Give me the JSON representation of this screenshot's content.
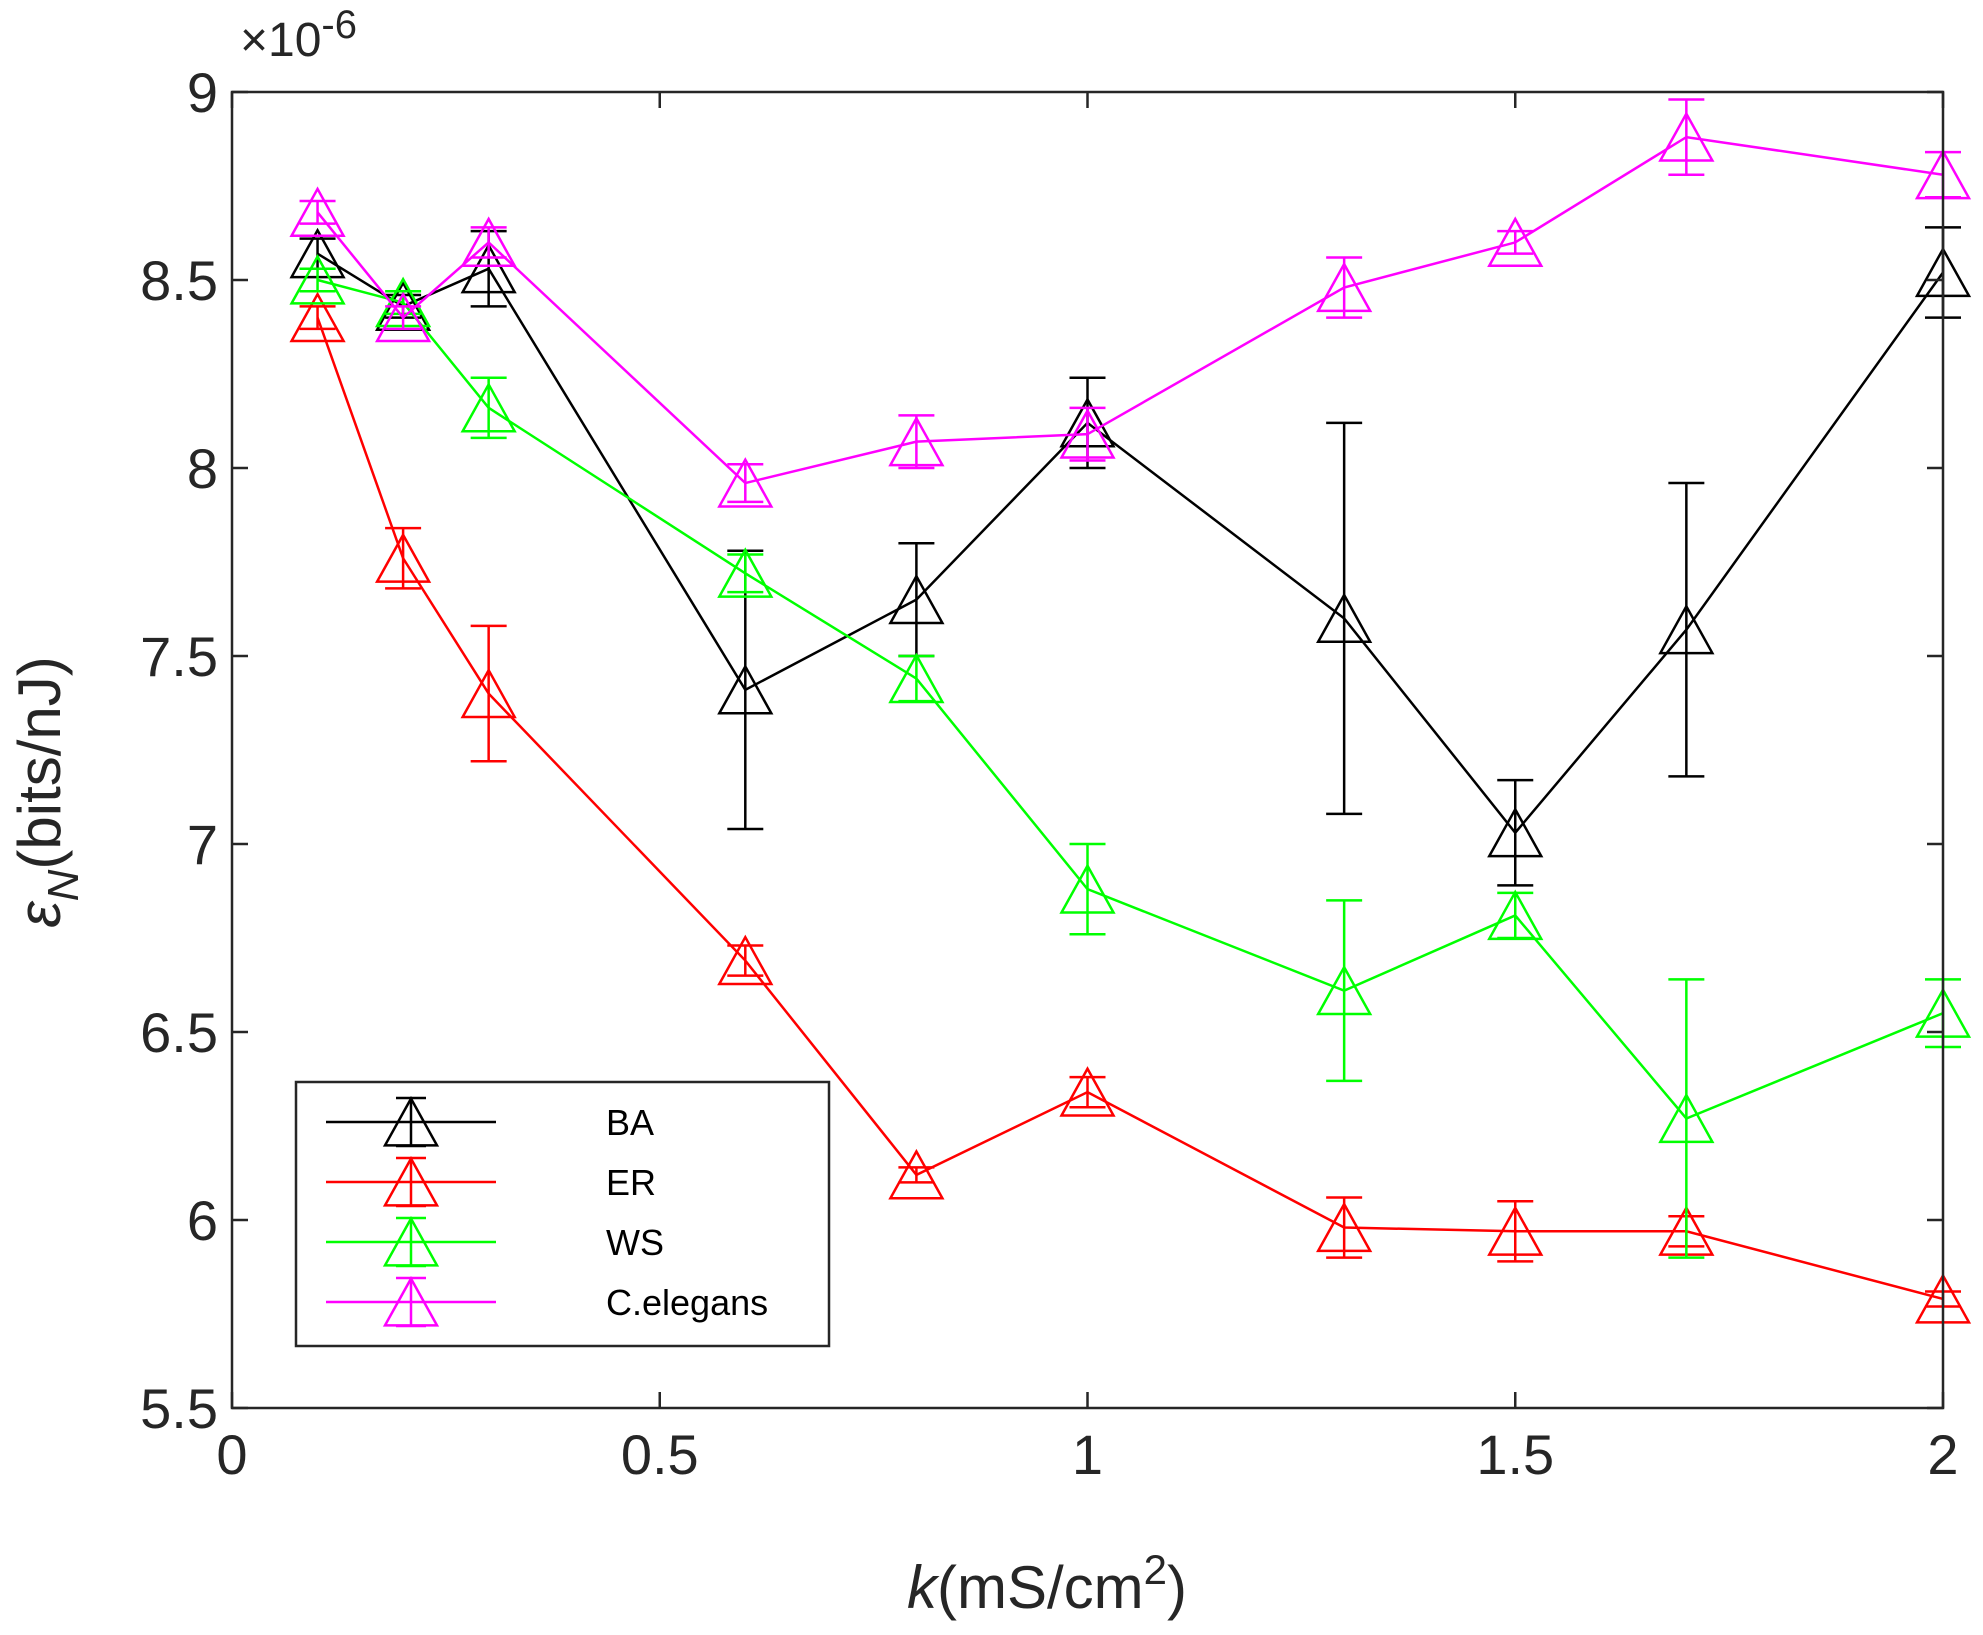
{
  "chart_data": {
    "type": "line",
    "title": "",
    "exponent_multiplier": "×10",
    "exponent_power": "-6",
    "xlabel": {
      "var": "k",
      "unit_pre": "(mS/cm",
      "unit_sup": "2",
      "unit_post": ")"
    },
    "ylabel": {
      "var": "ε",
      "sub": "N",
      "unit": "(bits/nJ)"
    },
    "xlim": [
      0,
      2
    ],
    "ylim": [
      5.5,
      9
    ],
    "xticks": [
      {
        "value": 0,
        "label": "0"
      },
      {
        "value": 0.5,
        "label": "0.5"
      },
      {
        "value": 1,
        "label": "1"
      },
      {
        "value": 1.5,
        "label": "1.5"
      },
      {
        "value": 2,
        "label": "2"
      }
    ],
    "yticks": [
      {
        "value": 5.5,
        "label": "5.5"
      },
      {
        "value": 6,
        "label": "6"
      },
      {
        "value": 6.5,
        "label": "6.5"
      },
      {
        "value": 7,
        "label": "7"
      },
      {
        "value": 7.5,
        "label": "7.5"
      },
      {
        "value": 8,
        "label": "8"
      },
      {
        "value": 8.5,
        "label": "8.5"
      },
      {
        "value": 9,
        "label": "9"
      }
    ],
    "grid": false,
    "legend_position": "bottom-left",
    "series": [
      {
        "name": "BA",
        "color": "#000000",
        "x": [
          0.1,
          0.2,
          0.3,
          0.6,
          0.8,
          1.0,
          1.3,
          1.5,
          1.7,
          2.0
        ],
        "y": [
          8.57,
          8.43,
          8.53,
          7.41,
          7.65,
          8.12,
          7.6,
          7.03,
          7.57,
          8.52
        ],
        "err": [
          0.04,
          0.03,
          0.1,
          0.37,
          0.15,
          0.12,
          0.52,
          0.14,
          0.39,
          0.12
        ]
      },
      {
        "name": "ER",
        "color": "#ff0000",
        "x": [
          0.1,
          0.2,
          0.3,
          0.6,
          0.8,
          1.0,
          1.3,
          1.5,
          1.7,
          2.0
        ],
        "y": [
          8.4,
          7.76,
          7.4,
          6.69,
          6.12,
          6.34,
          5.98,
          5.97,
          5.97,
          5.79
        ],
        "err": [
          0.03,
          0.08,
          0.18,
          0.04,
          0.02,
          0.04,
          0.08,
          0.08,
          0.04,
          0.02
        ]
      },
      {
        "name": "WS",
        "color": "#00ff00",
        "x": [
          0.1,
          0.2,
          0.3,
          0.6,
          0.8,
          1.0,
          1.3,
          1.5,
          1.7,
          2.0
        ],
        "y": [
          8.5,
          8.44,
          8.16,
          7.72,
          7.44,
          6.88,
          6.61,
          6.81,
          6.27,
          6.55
        ],
        "err": [
          0.03,
          0.03,
          0.08,
          0.05,
          0.06,
          0.12,
          0.24,
          0.06,
          0.37,
          0.09
        ]
      },
      {
        "name": "C.elegans",
        "color": "#ff00ff",
        "x": [
          0.1,
          0.2,
          0.3,
          0.6,
          0.8,
          1.0,
          1.3,
          1.5,
          1.7,
          2.0
        ],
        "y": [
          8.68,
          8.4,
          8.6,
          7.96,
          8.07,
          8.09,
          8.48,
          8.6,
          8.88,
          8.78
        ],
        "err": [
          0.03,
          0.03,
          0.04,
          0.05,
          0.07,
          0.07,
          0.08,
          0.03,
          0.1,
          0.06
        ]
      }
    ]
  }
}
